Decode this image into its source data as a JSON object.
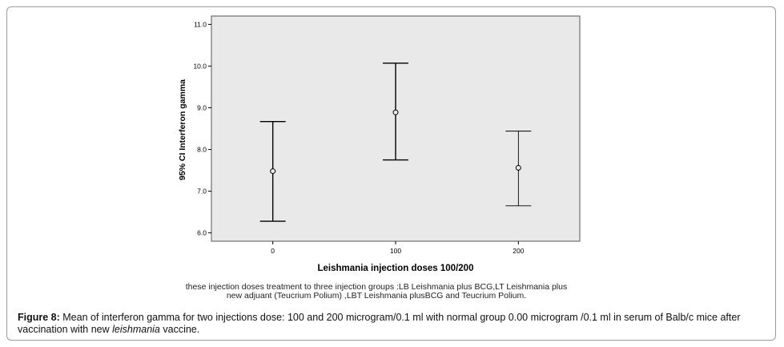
{
  "chart_data": {
    "type": "errorbar",
    "xlabel": "Leishmania injection doses 100/200",
    "ylabel": "95% CI Interferon gamma",
    "ylim": [
      5.8,
      11.2
    ],
    "yticks": [
      "6.0",
      "7.0",
      "8.0",
      "9.0",
      "10.0",
      "11.0"
    ],
    "ytick_values": [
      6,
      7,
      8,
      9,
      10,
      11
    ],
    "categories": [
      "0",
      "100",
      "200"
    ],
    "mean": [
      7.48,
      8.89,
      7.56
    ],
    "lower": [
      6.28,
      7.75,
      6.65
    ],
    "upper": [
      8.67,
      10.07,
      8.44
    ],
    "colors": {
      "plot_bg": "#e9e9e9",
      "mark": "#000000"
    }
  },
  "note": {
    "line1": "these injection doses  treatment to three injection groups :LB Leishmania plus BCG,LT Leishmania plus",
    "line2": "new adjuant (Teucrium Polium) ,LBT Leishmania plusBCG and Teucrium Polium."
  },
  "caption": {
    "label": "Figure 8:",
    "text1": " Mean of interferon gamma for two injections dose: 100 and 200 microgram/0.1 ml with normal group 0.00 microgram /0.1 ml  in serum of Balb/c mice after vaccination with new ",
    "italic": "leishmania",
    "text2": " vaccine."
  }
}
